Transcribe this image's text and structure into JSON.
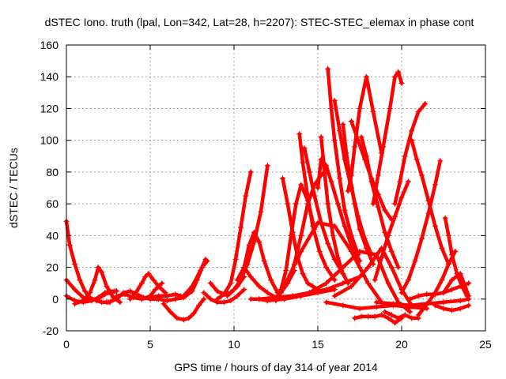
{
  "chart_data": {
    "type": "scatter",
    "title": "dSTEC Iono. truth (lpal, Lon=342, Lat=28, h=2207): STEC-STEC_elemax in phase cont",
    "xlabel": "GPS time / hours of day 314 of year 2014",
    "ylabel": "dSTEC  / TECUs",
    "xlim": [
      0,
      25
    ],
    "ylim": [
      -20,
      160
    ],
    "xticks": [
      "0",
      "5",
      "10",
      "15",
      "20",
      "25"
    ],
    "yticks": [
      "-20",
      "0",
      "20",
      "40",
      "60",
      "80",
      "100",
      "120",
      "140",
      "160"
    ],
    "grid": true,
    "marker": "plus",
    "color": "#ff0000",
    "series": [
      {
        "x": [
          0.0,
          0.2,
          0.5,
          0.8,
          1.1,
          1.4,
          1.8,
          2.1,
          2.4,
          2.6
        ],
        "y": [
          49,
          34,
          22,
          12,
          5,
          1,
          -1,
          -2,
          -2,
          -2
        ]
      },
      {
        "x": [
          0.0,
          0.5,
          1.0,
          1.5,
          1.9,
          2.3,
          2.6,
          2.9
        ],
        "y": [
          12,
          6,
          1,
          -1,
          1,
          4,
          5,
          5
        ]
      },
      {
        "x": [
          0.0,
          0.5,
          1.0,
          1.5,
          2.0,
          2.3,
          2.6,
          3.0
        ],
        "y": [
          2,
          -1,
          -2,
          -1,
          1,
          3,
          4,
          5
        ]
      },
      {
        "x": [
          0.5,
          1.0,
          1.4,
          1.7,
          1.9,
          2.1,
          2.4,
          2.8,
          3.2
        ],
        "y": [
          -3,
          -1,
          4,
          12,
          20,
          17,
          8,
          1,
          -2
        ]
      },
      {
        "x": [
          2.5,
          3.0,
          3.4,
          3.8,
          4.2,
          4.6,
          5.0,
          5.4
        ],
        "y": [
          -2,
          0,
          4,
          5,
          3,
          1,
          0,
          0
        ]
      },
      {
        "x": [
          3.0,
          3.5,
          4.0,
          4.5,
          5.0,
          5.3,
          5.7
        ],
        "y": [
          2,
          3,
          1,
          0,
          2,
          6,
          10
        ]
      },
      {
        "x": [
          3.8,
          4.2,
          4.5,
          4.7,
          4.9,
          5.2,
          5.5,
          5.9
        ],
        "y": [
          0,
          5,
          10,
          14,
          16,
          12,
          8,
          4
        ]
      },
      {
        "x": [
          4.5,
          5.0,
          5.5,
          6.0,
          6.5,
          6.8
        ],
        "y": [
          0,
          1,
          2,
          2,
          3,
          2
        ]
      },
      {
        "x": [
          5.0,
          5.5,
          6.0,
          6.5,
          7.0,
          7.5,
          8.0,
          8.3
        ],
        "y": [
          2,
          0,
          -1,
          0,
          2,
          8,
          18,
          25
        ]
      },
      {
        "x": [
          5.8,
          6.2,
          6.6,
          7.0,
          7.3,
          7.6,
          7.9,
          8.2
        ],
        "y": [
          -3,
          -8,
          -12,
          -13,
          -12,
          -9,
          -4,
          0
        ]
      },
      {
        "x": [
          6.5,
          7.0,
          7.5,
          7.8,
          8.1,
          8.4
        ],
        "y": [
          0,
          1,
          5,
          12,
          20,
          24
        ]
      },
      {
        "x": [
          8.2,
          8.6,
          9.0,
          9.4,
          9.8,
          10.2,
          10.6
        ],
        "y": [
          4,
          0,
          -2,
          -2,
          -1,
          2,
          6
        ]
      },
      {
        "x": [
          8.6,
          9.0,
          9.4,
          9.8,
          10.2,
          10.6
        ],
        "y": [
          10,
          5,
          3,
          4,
          8,
          14
        ]
      },
      {
        "x": [
          9.0,
          9.4,
          9.8,
          10.1,
          10.4,
          10.7,
          11.0
        ],
        "y": [
          0,
          3,
          10,
          25,
          45,
          65,
          80
        ]
      },
      {
        "x": [
          9.6,
          10.0,
          10.4,
          10.8,
          11.2,
          11.6,
          12.0
        ],
        "y": [
          2,
          6,
          12,
          22,
          36,
          55,
          84
        ]
      },
      {
        "x": [
          10.2,
          10.6,
          10.9,
          11.2,
          11.5,
          11.8,
          12.2,
          12.6
        ],
        "y": [
          12,
          20,
          34,
          42,
          36,
          24,
          12,
          4
        ]
      },
      {
        "x": [
          10.6,
          11.0,
          11.5,
          12.0,
          12.5,
          13.0
        ],
        "y": [
          20,
          14,
          8,
          4,
          1,
          0
        ]
      },
      {
        "x": [
          11.0,
          11.5,
          12.0,
          12.5,
          12.8,
          13.2,
          13.6
        ],
        "y": [
          0,
          0,
          -1,
          1,
          4,
          10,
          18
        ]
      },
      {
        "x": [
          12.5,
          12.8,
          13.1,
          13.4,
          13.7,
          14.0,
          14.4,
          14.8
        ],
        "y": [
          -1,
          6,
          18,
          40,
          60,
          72,
          62,
          44
        ]
      },
      {
        "x": [
          12.9,
          13.2,
          13.5,
          13.8,
          14.1,
          14.4,
          14.7,
          15.0
        ],
        "y": [
          76,
          60,
          42,
          26,
          16,
          10,
          8,
          6
        ]
      },
      {
        "x": [
          13.9,
          14.1,
          14.4,
          14.7,
          15.1,
          15.5,
          16.0
        ],
        "y": [
          104,
          86,
          64,
          46,
          30,
          20,
          12
        ]
      },
      {
        "x": [
          14.2,
          14.5,
          14.8,
          15.2,
          15.6,
          16.0,
          16.5
        ],
        "y": [
          95,
          80,
          65,
          48,
          35,
          25,
          16
        ]
      },
      {
        "x": [
          13.2,
          13.6,
          14.0,
          14.4,
          14.8,
          15.2,
          15.5
        ],
        "y": [
          10,
          22,
          40,
          60,
          72,
          78,
          80
        ]
      },
      {
        "x": [
          15.0,
          15.2,
          15.5,
          15.8,
          16.2,
          16.6,
          17.0,
          17.5
        ],
        "y": [
          70,
          88,
          84,
          74,
          60,
          46,
          34,
          24
        ]
      },
      {
        "x": [
          15.2,
          15.4,
          15.6,
          15.9,
          16.2,
          16.5,
          16.8
        ],
        "y": [
          102,
          80,
          60,
          40,
          26,
          16,
          10
        ]
      },
      {
        "x": [
          15.6,
          15.8,
          16.0,
          16.3,
          16.6,
          17.0,
          17.4
        ],
        "y": [
          145,
          120,
          100,
          76,
          56,
          40,
          28
        ]
      },
      {
        "x": [
          16.0,
          16.3,
          16.6,
          17.0,
          17.4,
          17.8,
          18.2
        ],
        "y": [
          125,
          106,
          88,
          70,
          52,
          38,
          28
        ]
      },
      {
        "x": [
          16.5,
          16.7,
          16.9,
          17.2,
          17.5,
          17.9,
          18.3
        ],
        "y": [
          110,
          92,
          78,
          60,
          44,
          32,
          22
        ]
      },
      {
        "x": [
          16.8,
          17.0,
          17.2,
          17.5,
          17.9,
          18.3,
          18.8
        ],
        "y": [
          68,
          78,
          96,
          120,
          140,
          118,
          92
        ]
      },
      {
        "x": [
          17.0,
          17.4,
          17.8,
          18.2,
          18.6,
          19.0,
          19.4
        ],
        "y": [
          112,
          100,
          88,
          76,
          66,
          56,
          50
        ]
      },
      {
        "x": [
          17.6,
          17.9,
          18.2,
          18.6,
          19.0,
          19.4,
          19.8
        ],
        "y": [
          102,
          90,
          74,
          58,
          42,
          30,
          20
        ]
      },
      {
        "x": [
          18.3,
          18.6,
          18.9,
          19.3,
          19.6,
          19.8,
          20.0
        ],
        "y": [
          60,
          78,
          96,
          120,
          140,
          143,
          136
        ]
      },
      {
        "x": [
          19.6,
          19.9,
          20.2,
          20.6,
          21.0,
          21.4
        ],
        "y": [
          60,
          74,
          90,
          106,
          118,
          123
        ]
      },
      {
        "x": [
          18.4,
          18.8,
          19.2,
          19.6,
          20.0,
          20.4
        ],
        "y": [
          12,
          26,
          40,
          52,
          64,
          74
        ]
      },
      {
        "x": [
          20.6,
          20.9,
          21.2,
          21.6,
          22.0,
          22.4,
          22.8
        ],
        "y": [
          100,
          88,
          78,
          62,
          46,
          32,
          22
        ]
      },
      {
        "x": [
          20.0,
          20.4,
          20.8,
          21.2,
          21.6,
          22.0,
          22.3
        ],
        "y": [
          4,
          12,
          24,
          38,
          54,
          72,
          87
        ]
      },
      {
        "x": [
          21.0,
          21.3,
          21.6,
          22.0,
          22.4,
          22.8,
          23.2
        ],
        "y": [
          -10,
          -6,
          -2,
          4,
          12,
          22,
          30
        ]
      },
      {
        "x": [
          22.6,
          22.8,
          23.0,
          23.3,
          23.6,
          23.9
        ],
        "y": [
          51,
          40,
          28,
          16,
          8,
          2
        ]
      },
      {
        "x": [
          13.0,
          14.0,
          15.0,
          16.0,
          17.0,
          17.5,
          18.0,
          18.8
        ],
        "y": [
          8,
          30,
          48,
          46,
          30,
          20,
          10,
          -2
        ]
      },
      {
        "x": [
          14.5,
          15.5,
          16.5,
          17.5,
          18.5,
          19.2,
          19.8,
          20.5
        ],
        "y": [
          4,
          10,
          20,
          30,
          28,
          10,
          -2,
          -8
        ]
      },
      {
        "x": [
          16.0,
          17.0,
          18.0,
          18.8,
          19.4,
          20.0,
          20.6
        ],
        "y": [
          2,
          8,
          20,
          32,
          20,
          6,
          -4
        ]
      },
      {
        "x": [
          17.2,
          17.6,
          18.0,
          18.4,
          18.8,
          19.2,
          19.6,
          20.0
        ],
        "y": [
          -12,
          -11,
          -11,
          -11,
          -10,
          -12,
          -15,
          -12
        ]
      },
      {
        "x": [
          19.0,
          19.4,
          19.8,
          20.2,
          20.6,
          21.0
        ],
        "y": [
          -8,
          -10,
          -12,
          -10,
          -12,
          -12
        ]
      },
      {
        "x": [
          15.5,
          16.5,
          17.5,
          18.5,
          19.5,
          20.5,
          21.5
        ],
        "y": [
          -2,
          -4,
          -6,
          -5,
          -4,
          -5,
          -6
        ]
      },
      {
        "x": [
          18.5,
          19.5,
          20.5,
          21.5,
          22.5,
          23.5,
          24.0
        ],
        "y": [
          -2,
          -3,
          -4,
          -3,
          -2,
          -1,
          0
        ]
      },
      {
        "x": [
          21.5,
          22.0,
          22.5,
          23.0,
          23.5,
          24.0
        ],
        "y": [
          3,
          3,
          4,
          6,
          8,
          10
        ]
      },
      {
        "x": [
          20.5,
          21.0,
          21.5,
          22.0,
          22.5,
          23.0,
          23.5,
          24.0
        ],
        "y": [
          0,
          2,
          3,
          3,
          4,
          12,
          16,
          2
        ]
      },
      {
        "x": [
          22.0,
          22.5,
          23.0,
          23.5,
          24.0
        ],
        "y": [
          -4,
          -6,
          -7,
          -6,
          -4
        ]
      },
      {
        "x": [
          11.5,
          12.5,
          13.5,
          14.5,
          15.5,
          16.5,
          17.5
        ],
        "y": [
          0,
          1,
          2,
          4,
          6,
          10,
          14
        ]
      },
      {
        "x": [
          12.0,
          13.0,
          14.0,
          15.0,
          16.0
        ],
        "y": [
          -1,
          0,
          2,
          4,
          6
        ]
      }
    ]
  }
}
